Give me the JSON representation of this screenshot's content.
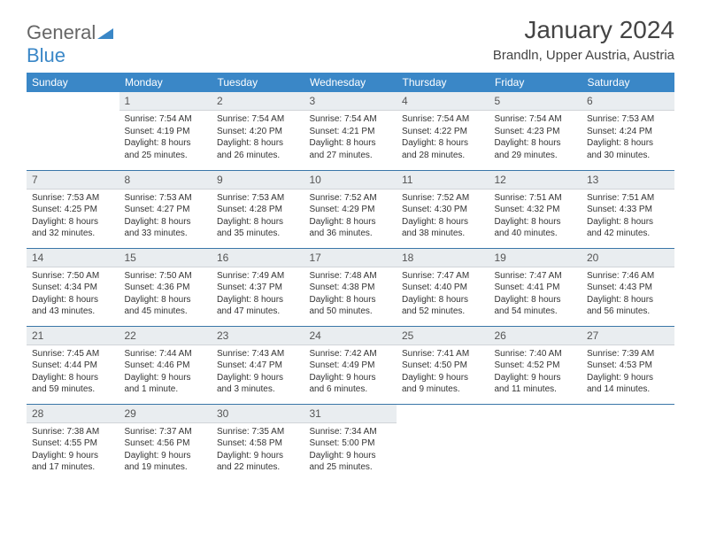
{
  "brand": {
    "part1": "General",
    "part2": "Blue"
  },
  "header": {
    "title": "January 2024",
    "location": "Brandln, Upper Austria, Austria"
  },
  "colors": {
    "header_bg": "#3a87c7",
    "header_text": "#ffffff",
    "daynum_bg": "#e9edf0",
    "row_sep": "#3a76a8",
    "text": "#333333",
    "logo_blue": "#3a87c7"
  },
  "weekdays": [
    "Sunday",
    "Monday",
    "Tuesday",
    "Wednesday",
    "Thursday",
    "Friday",
    "Saturday"
  ],
  "grid": [
    [
      null,
      {
        "n": "1",
        "sunrise": "7:54 AM",
        "sunset": "4:19 PM",
        "daylight": "8 hours and 25 minutes."
      },
      {
        "n": "2",
        "sunrise": "7:54 AM",
        "sunset": "4:20 PM",
        "daylight": "8 hours and 26 minutes."
      },
      {
        "n": "3",
        "sunrise": "7:54 AM",
        "sunset": "4:21 PM",
        "daylight": "8 hours and 27 minutes."
      },
      {
        "n": "4",
        "sunrise": "7:54 AM",
        "sunset": "4:22 PM",
        "daylight": "8 hours and 28 minutes."
      },
      {
        "n": "5",
        "sunrise": "7:54 AM",
        "sunset": "4:23 PM",
        "daylight": "8 hours and 29 minutes."
      },
      {
        "n": "6",
        "sunrise": "7:53 AM",
        "sunset": "4:24 PM",
        "daylight": "8 hours and 30 minutes."
      }
    ],
    [
      {
        "n": "7",
        "sunrise": "7:53 AM",
        "sunset": "4:25 PM",
        "daylight": "8 hours and 32 minutes."
      },
      {
        "n": "8",
        "sunrise": "7:53 AM",
        "sunset": "4:27 PM",
        "daylight": "8 hours and 33 minutes."
      },
      {
        "n": "9",
        "sunrise": "7:53 AM",
        "sunset": "4:28 PM",
        "daylight": "8 hours and 35 minutes."
      },
      {
        "n": "10",
        "sunrise": "7:52 AM",
        "sunset": "4:29 PM",
        "daylight": "8 hours and 36 minutes."
      },
      {
        "n": "11",
        "sunrise": "7:52 AM",
        "sunset": "4:30 PM",
        "daylight": "8 hours and 38 minutes."
      },
      {
        "n": "12",
        "sunrise": "7:51 AM",
        "sunset": "4:32 PM",
        "daylight": "8 hours and 40 minutes."
      },
      {
        "n": "13",
        "sunrise": "7:51 AM",
        "sunset": "4:33 PM",
        "daylight": "8 hours and 42 minutes."
      }
    ],
    [
      {
        "n": "14",
        "sunrise": "7:50 AM",
        "sunset": "4:34 PM",
        "daylight": "8 hours and 43 minutes."
      },
      {
        "n": "15",
        "sunrise": "7:50 AM",
        "sunset": "4:36 PM",
        "daylight": "8 hours and 45 minutes."
      },
      {
        "n": "16",
        "sunrise": "7:49 AM",
        "sunset": "4:37 PM",
        "daylight": "8 hours and 47 minutes."
      },
      {
        "n": "17",
        "sunrise": "7:48 AM",
        "sunset": "4:38 PM",
        "daylight": "8 hours and 50 minutes."
      },
      {
        "n": "18",
        "sunrise": "7:47 AM",
        "sunset": "4:40 PM",
        "daylight": "8 hours and 52 minutes."
      },
      {
        "n": "19",
        "sunrise": "7:47 AM",
        "sunset": "4:41 PM",
        "daylight": "8 hours and 54 minutes."
      },
      {
        "n": "20",
        "sunrise": "7:46 AM",
        "sunset": "4:43 PM",
        "daylight": "8 hours and 56 minutes."
      }
    ],
    [
      {
        "n": "21",
        "sunrise": "7:45 AM",
        "sunset": "4:44 PM",
        "daylight": "8 hours and 59 minutes."
      },
      {
        "n": "22",
        "sunrise": "7:44 AM",
        "sunset": "4:46 PM",
        "daylight": "9 hours and 1 minute."
      },
      {
        "n": "23",
        "sunrise": "7:43 AM",
        "sunset": "4:47 PM",
        "daylight": "9 hours and 3 minutes."
      },
      {
        "n": "24",
        "sunrise": "7:42 AM",
        "sunset": "4:49 PM",
        "daylight": "9 hours and 6 minutes."
      },
      {
        "n": "25",
        "sunrise": "7:41 AM",
        "sunset": "4:50 PM",
        "daylight": "9 hours and 9 minutes."
      },
      {
        "n": "26",
        "sunrise": "7:40 AM",
        "sunset": "4:52 PM",
        "daylight": "9 hours and 11 minutes."
      },
      {
        "n": "27",
        "sunrise": "7:39 AM",
        "sunset": "4:53 PM",
        "daylight": "9 hours and 14 minutes."
      }
    ],
    [
      {
        "n": "28",
        "sunrise": "7:38 AM",
        "sunset": "4:55 PM",
        "daylight": "9 hours and 17 minutes."
      },
      {
        "n": "29",
        "sunrise": "7:37 AM",
        "sunset": "4:56 PM",
        "daylight": "9 hours and 19 minutes."
      },
      {
        "n": "30",
        "sunrise": "7:35 AM",
        "sunset": "4:58 PM",
        "daylight": "9 hours and 22 minutes."
      },
      {
        "n": "31",
        "sunrise": "7:34 AM",
        "sunset": "5:00 PM",
        "daylight": "9 hours and 25 minutes."
      },
      null,
      null,
      null
    ]
  ],
  "labels": {
    "sunrise": "Sunrise: ",
    "sunset": "Sunset: ",
    "daylight": "Daylight: "
  }
}
